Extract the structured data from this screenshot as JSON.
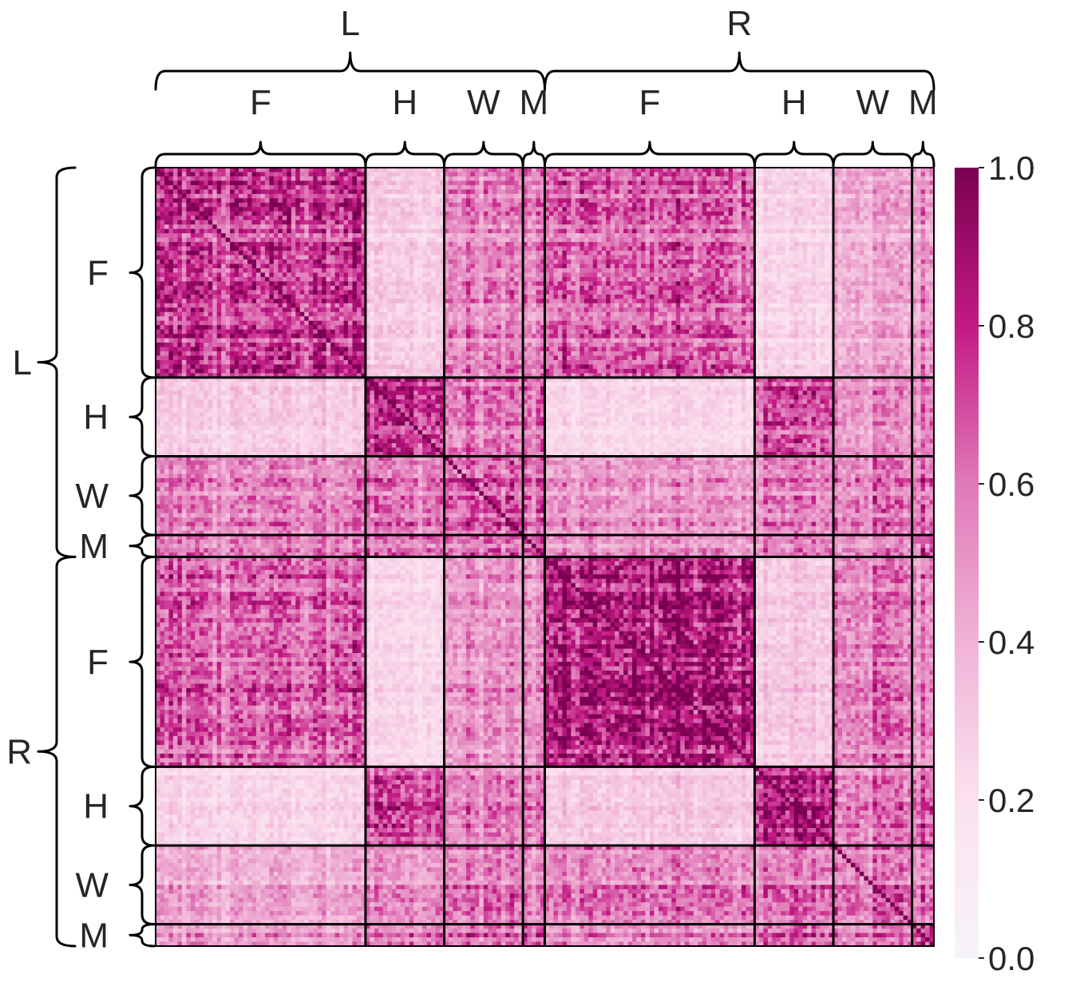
{
  "chart_data": {
    "type": "heatmap",
    "title": "",
    "xlabel": "",
    "ylabel": "",
    "vmin": 0.0,
    "vmax": 1.0,
    "colormap": {
      "name": "PuRd",
      "stops": [
        {
          "value": 0.0,
          "color": "#f7f4f9"
        },
        {
          "value": 0.2,
          "color": "#fbe1ef"
        },
        {
          "value": 0.4,
          "color": "#f0b3d6"
        },
        {
          "value": 0.6,
          "color": "#e07ab8"
        },
        {
          "value": 0.8,
          "color": "#c21a84"
        },
        {
          "value": 1.0,
          "color": "#7a0151"
        }
      ]
    },
    "colorbar_ticks": [
      "0.0",
      "0.2",
      "0.4",
      "0.6",
      "0.8",
      "1.0"
    ],
    "colorbar_tick_values": [
      0.0,
      0.2,
      0.4,
      0.6,
      0.8,
      1.0
    ],
    "groups": [
      {
        "label": "L",
        "subgroups": [
          {
            "label": "F",
            "size": 48
          },
          {
            "label": "H",
            "size": 18
          },
          {
            "label": "W",
            "size": 18
          },
          {
            "label": "M",
            "size": 5
          }
        ]
      },
      {
        "label": "R",
        "subgroups": [
          {
            "label": "F",
            "size": 48
          },
          {
            "label": "H",
            "size": 18
          },
          {
            "label": "W",
            "size": 18
          },
          {
            "label": "M",
            "size": 5
          }
        ]
      }
    ],
    "block_mean_correlation": [
      [
        0.75,
        0.3,
        0.55,
        0.6,
        0.65,
        0.25,
        0.45,
        0.5
      ],
      [
        0.3,
        0.8,
        0.6,
        0.65,
        0.25,
        0.7,
        0.55,
        0.6
      ],
      [
        0.55,
        0.6,
        0.65,
        0.65,
        0.5,
        0.55,
        0.6,
        0.6
      ],
      [
        0.6,
        0.65,
        0.65,
        0.8,
        0.55,
        0.6,
        0.6,
        0.7
      ],
      [
        0.65,
        0.25,
        0.5,
        0.55,
        0.85,
        0.3,
        0.6,
        0.55
      ],
      [
        0.25,
        0.7,
        0.55,
        0.6,
        0.3,
        0.8,
        0.6,
        0.65
      ],
      [
        0.45,
        0.55,
        0.6,
        0.6,
        0.6,
        0.6,
        0.65,
        0.6
      ],
      [
        0.5,
        0.6,
        0.6,
        0.7,
        0.55,
        0.65,
        0.6,
        0.8
      ]
    ],
    "diagonal": 1.0
  }
}
